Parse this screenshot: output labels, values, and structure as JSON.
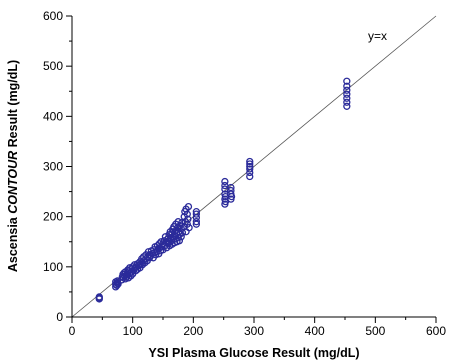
{
  "chart_data": {
    "type": "scatter",
    "title": "",
    "xlabel": "YSI Plasma Glucose Result (mg/dL)",
    "ylabel": {
      "prefix": "Ascensia ",
      "brand": "CONTOUR",
      "suffix": " Result (mg/dL)"
    },
    "xlim": [
      0,
      600
    ],
    "ylim": [
      0,
      600
    ],
    "xticks": [
      0,
      100,
      200,
      300,
      400,
      500,
      600
    ],
    "yticks": [
      0,
      100,
      200,
      300,
      400,
      500,
      600
    ],
    "grid": false,
    "legend": "none",
    "reference_line": {
      "label": "y=x",
      "slope": 1,
      "intercept": 0
    },
    "marker": {
      "shape": "open-circle",
      "color": "#2b2b9a"
    },
    "series": [
      {
        "points": [
          [
            45,
            36
          ],
          [
            45,
            40
          ],
          [
            45,
            38
          ],
          [
            72,
            60
          ],
          [
            72,
            65
          ],
          [
            72,
            70
          ],
          [
            74,
            63
          ],
          [
            75,
            68
          ],
          [
            75,
            72
          ],
          [
            76,
            66
          ],
          [
            82,
            74
          ],
          [
            83,
            80
          ],
          [
            84,
            85
          ],
          [
            85,
            78
          ],
          [
            86,
            88
          ],
          [
            87,
            82
          ],
          [
            88,
            90
          ],
          [
            88,
            76
          ],
          [
            90,
            80
          ],
          [
            91,
            84
          ],
          [
            92,
            88
          ],
          [
            92,
            94
          ],
          [
            93,
            78
          ],
          [
            94,
            92
          ],
          [
            95,
            86
          ],
          [
            95,
            98
          ],
          [
            97,
            82
          ],
          [
            98,
            90
          ],
          [
            99,
            96
          ],
          [
            100,
            100
          ],
          [
            100,
            86
          ],
          [
            102,
            94
          ],
          [
            103,
            104
          ],
          [
            104,
            98
          ],
          [
            105,
            92
          ],
          [
            106,
            100
          ],
          [
            108,
            106
          ],
          [
            108,
            95
          ],
          [
            110,
            102
          ],
          [
            112,
            110
          ],
          [
            112,
            98
          ],
          [
            114,
            106
          ],
          [
            115,
            116
          ],
          [
            116,
            104
          ],
          [
            118,
            112
          ],
          [
            118,
            120
          ],
          [
            120,
            108
          ],
          [
            122,
            116
          ],
          [
            122,
            124
          ],
          [
            124,
            112
          ],
          [
            125,
            120
          ],
          [
            126,
            130
          ],
          [
            128,
            118
          ],
          [
            128,
            124
          ],
          [
            130,
            122
          ],
          [
            131,
            132
          ],
          [
            132,
            126
          ],
          [
            134,
            118
          ],
          [
            135,
            134
          ],
          [
            136,
            128
          ],
          [
            137,
            140
          ],
          [
            138,
            124
          ],
          [
            140,
            130
          ],
          [
            141,
            142
          ],
          [
            142,
            136
          ],
          [
            143,
            126
          ],
          [
            144,
            146
          ],
          [
            145,
            138
          ],
          [
            146,
            132
          ],
          [
            147,
            150
          ],
          [
            148,
            140
          ],
          [
            150,
            146
          ],
          [
            150,
            134
          ],
          [
            152,
            152
          ],
          [
            153,
            142
          ],
          [
            154,
            160
          ],
          [
            155,
            148
          ],
          [
            156,
            138
          ],
          [
            158,
            156
          ],
          [
            159,
            146
          ],
          [
            160,
            164
          ],
          [
            160,
            150
          ],
          [
            161,
            142
          ],
          [
            162,
            170
          ],
          [
            163,
            158
          ],
          [
            164,
            152
          ],
          [
            165,
            168
          ],
          [
            165,
            145
          ],
          [
            166,
            175
          ],
          [
            167,
            160
          ],
          [
            168,
            180
          ],
          [
            168,
            155
          ],
          [
            169,
            148
          ],
          [
            170,
            172
          ],
          [
            170,
            162
          ],
          [
            171,
            185
          ],
          [
            172,
            166
          ],
          [
            173,
            150
          ],
          [
            174,
            178
          ],
          [
            175,
            158
          ],
          [
            175,
            190
          ],
          [
            176,
            170
          ],
          [
            177,
            152
          ],
          [
            178,
            182
          ],
          [
            178,
            165
          ],
          [
            180,
            176
          ],
          [
            180,
            160
          ],
          [
            181,
            188
          ],
          [
            182,
            168
          ],
          [
            185,
            200
          ],
          [
            185,
            180
          ],
          [
            186,
            210
          ],
          [
            187,
            190
          ],
          [
            188,
            215
          ],
          [
            188,
            170
          ],
          [
            190,
            205
          ],
          [
            190,
            185
          ],
          [
            191,
            195
          ],
          [
            192,
            220
          ],
          [
            193,
            178
          ],
          [
            205,
            190
          ],
          [
            205,
            198
          ],
          [
            205,
            205
          ],
          [
            205,
            210
          ],
          [
            205,
            185
          ],
          [
            252,
            225
          ],
          [
            252,
            235
          ],
          [
            252,
            245
          ],
          [
            252,
            255
          ],
          [
            252,
            262
          ],
          [
            252,
            270
          ],
          [
            253,
            240
          ],
          [
            253,
            230
          ],
          [
            262,
            235
          ],
          [
            262,
            245
          ],
          [
            262,
            252
          ],
          [
            262,
            258
          ],
          [
            263,
            240
          ],
          [
            293,
            280
          ],
          [
            293,
            288
          ],
          [
            293,
            295
          ],
          [
            293,
            300
          ],
          [
            293,
            305
          ],
          [
            293,
            310
          ],
          [
            453,
            420
          ],
          [
            453,
            428
          ],
          [
            453,
            436
          ],
          [
            453,
            444
          ],
          [
            453,
            452
          ],
          [
            453,
            460
          ],
          [
            453,
            470
          ]
        ]
      }
    ]
  }
}
